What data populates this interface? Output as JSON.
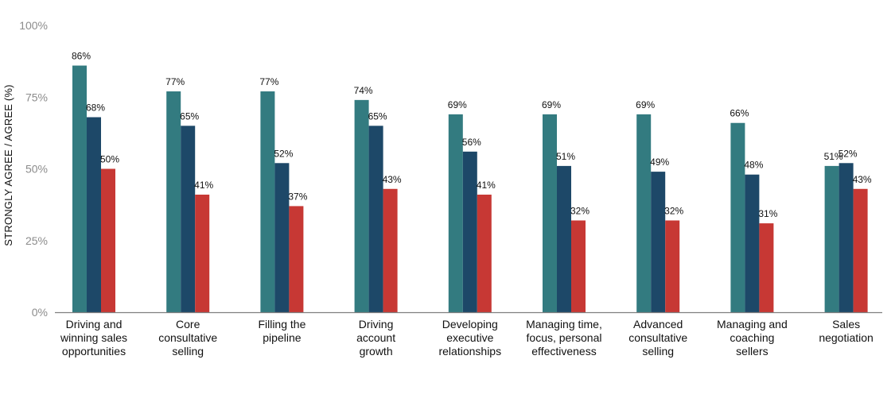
{
  "chart_data": {
    "type": "bar",
    "title": "",
    "xlabel": "",
    "ylabel": "STRONGLY AGREE / AGREE (%)",
    "ylim": [
      0,
      100
    ],
    "yticks": [
      0,
      25,
      50,
      75,
      100
    ],
    "ytick_labels": [
      "0%",
      "25%",
      "50%",
      "75%",
      "100%"
    ],
    "grid": false,
    "legend": "none",
    "categories": [
      [
        "Driving and",
        "winning sales",
        "opportunities"
      ],
      [
        "Core",
        "consultative",
        "selling"
      ],
      [
        "Filling the",
        "pipeline"
      ],
      [
        "Driving",
        "account",
        "growth"
      ],
      [
        "Developing",
        "executive",
        "relationships"
      ],
      [
        "Managing time,",
        "focus, personal",
        "effectiveness"
      ],
      [
        "Advanced",
        "consultative",
        "selling"
      ],
      [
        "Managing and",
        "coaching",
        "sellers"
      ],
      [
        "Sales",
        "negotiation"
      ]
    ],
    "series": [
      {
        "name": "Series 1",
        "color": "#337b80",
        "values": [
          86,
          77,
          77,
          74,
          69,
          69,
          69,
          66,
          51
        ]
      },
      {
        "name": "Series 2",
        "color": "#1d4868",
        "values": [
          68,
          65,
          52,
          65,
          56,
          51,
          49,
          48,
          52
        ]
      },
      {
        "name": "Series 3",
        "color": "#c73834",
        "values": [
          50,
          41,
          37,
          43,
          41,
          32,
          32,
          31,
          43
        ]
      }
    ],
    "value_suffix": "%"
  }
}
